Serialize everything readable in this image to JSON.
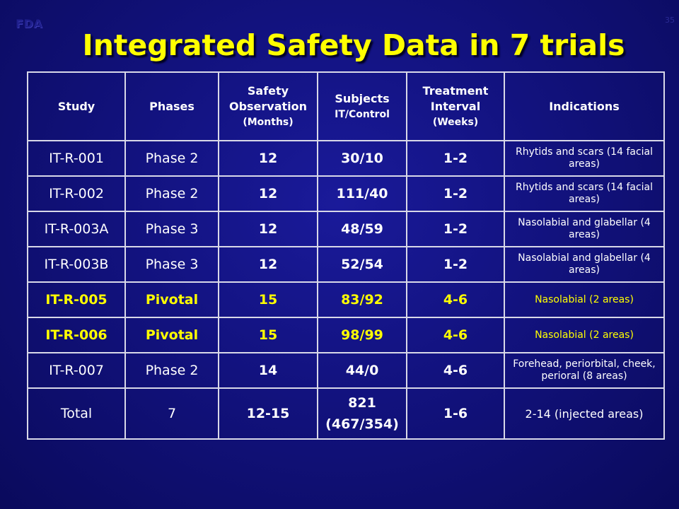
{
  "logo": "FDA",
  "slide_number": "35",
  "title": "Integrated Safety Data in 7 trials",
  "columns": {
    "study": "Study",
    "phases": "Phases",
    "safety_line1": "Safety Observation",
    "safety_line2": "(Months)",
    "subjects_line1": "Subjects",
    "subjects_line2": "IT/Control",
    "treatment_line1": "Treatment",
    "treatment_line2": "Interval",
    "treatment_line3": "(Weeks)",
    "indications": "Indications"
  },
  "rows": [
    {
      "study": "IT-R-001",
      "phase": "Phase 2",
      "months": "12",
      "subjects": "30/10",
      "interval": "1-2",
      "indication": "Rhytids and scars (14 facial areas)",
      "highlight": false
    },
    {
      "study": "IT-R-002",
      "phase": "Phase 2",
      "months": "12",
      "subjects": "111/40",
      "interval": "1-2",
      "indication": "Rhytids and scars (14 facial areas)",
      "highlight": false
    },
    {
      "study": "IT-R-003A",
      "phase": "Phase 3",
      "months": "12",
      "subjects": "48/59",
      "interval": "1-2",
      "indication": "Nasolabial and glabellar (4 areas)",
      "highlight": false
    },
    {
      "study": "IT-R-003B",
      "phase": "Phase 3",
      "months": "12",
      "subjects": "52/54",
      "interval": "1-2",
      "indication": "Nasolabial and glabellar (4 areas)",
      "highlight": false
    },
    {
      "study": "IT-R-005",
      "phase": "Pivotal",
      "months": "15",
      "subjects": "83/92",
      "interval": "4-6",
      "indication": "Nasolabial (2 areas)",
      "highlight": true
    },
    {
      "study": "IT-R-006",
      "phase": "Pivotal",
      "months": "15",
      "subjects": "98/99",
      "interval": "4-6",
      "indication": "Nasolabial (2 areas)",
      "highlight": true
    },
    {
      "study": "IT-R-007",
      "phase": "Phase 2",
      "months": "14",
      "subjects": "44/0",
      "interval": "4-6",
      "indication": "Forehead, periorbital, cheek, perioral (8 areas)",
      "highlight": false
    }
  ],
  "total": {
    "label": "Total",
    "phases": "7",
    "months": "12-15",
    "subjects_line1": "821",
    "subjects_line2": "(467/354)",
    "interval": "1-6",
    "indication": "2-14 (injected areas)"
  },
  "colors": {
    "background": "#12127e",
    "title": "#ffff00",
    "highlight": "#ffff00",
    "text": "#ffffff",
    "border": "#d8d8e8"
  }
}
